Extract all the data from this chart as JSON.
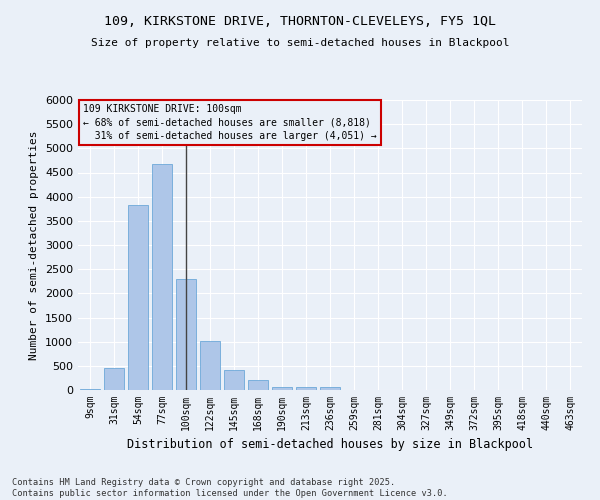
{
  "title1": "109, KIRKSTONE DRIVE, THORNTON-CLEVELEYS, FY5 1QL",
  "title2": "Size of property relative to semi-detached houses in Blackpool",
  "xlabel": "Distribution of semi-detached houses by size in Blackpool",
  "ylabel": "Number of semi-detached properties",
  "categories": [
    "9sqm",
    "31sqm",
    "54sqm",
    "77sqm",
    "100sqm",
    "122sqm",
    "145sqm",
    "168sqm",
    "190sqm",
    "213sqm",
    "236sqm",
    "259sqm",
    "281sqm",
    "304sqm",
    "327sqm",
    "349sqm",
    "372sqm",
    "395sqm",
    "418sqm",
    "440sqm",
    "463sqm"
  ],
  "values": [
    30,
    460,
    3820,
    4680,
    2300,
    1010,
    415,
    200,
    70,
    55,
    60,
    0,
    0,
    0,
    0,
    0,
    0,
    0,
    0,
    0,
    0
  ],
  "bar_color": "#aec6e8",
  "bar_edge_color": "#5a9fd4",
  "highlight_index": 4,
  "highlight_line_color": "#444444",
  "property_size": "100sqm",
  "pct_smaller": 68,
  "n_smaller": 8818,
  "pct_larger": 31,
  "n_larger": 4051,
  "legend_box_color": "#cc0000",
  "ylim": [
    0,
    6000
  ],
  "yticks": [
    0,
    500,
    1000,
    1500,
    2000,
    2500,
    3000,
    3500,
    4000,
    4500,
    5000,
    5500,
    6000
  ],
  "bg_color": "#eaf0f8",
  "grid_color": "#ffffff",
  "footer": "Contains HM Land Registry data © Crown copyright and database right 2025.\nContains public sector information licensed under the Open Government Licence v3.0."
}
